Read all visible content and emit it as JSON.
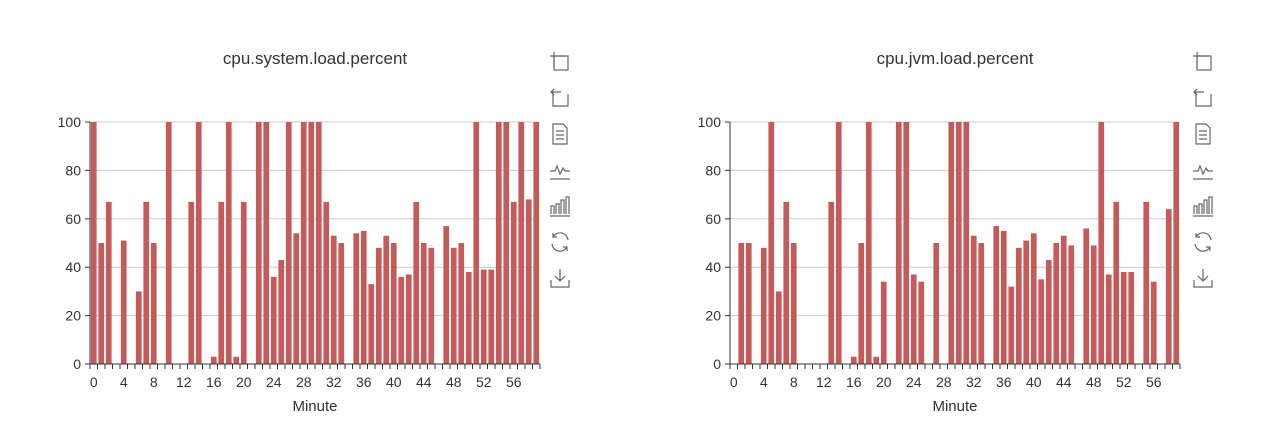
{
  "colors": {
    "bar": "#c45a5a",
    "axis": "#333333",
    "grid": "#cccccc",
    "text": "#333333",
    "icon": "#666666"
  },
  "toolbox": {
    "tools": [
      {
        "name": "zoom-icon",
        "title": "Zoom"
      },
      {
        "name": "zoom-reset-icon",
        "title": "Back"
      },
      {
        "name": "data-view-icon",
        "title": "Data View"
      },
      {
        "name": "line-chart-icon",
        "title": "Line"
      },
      {
        "name": "bar-chart-icon",
        "title": "Bar"
      },
      {
        "name": "restore-icon",
        "title": "Restore"
      },
      {
        "name": "save-image-icon",
        "title": "Save"
      }
    ]
  },
  "chart_data": [
    {
      "type": "bar",
      "title": "cpu.system.load.percent",
      "xlabel": "Minute",
      "ylabel": "",
      "ylim": [
        0,
        100
      ],
      "yticks": [
        0,
        20,
        40,
        60,
        80,
        100
      ],
      "xticks": [
        0,
        4,
        8,
        12,
        16,
        20,
        24,
        28,
        32,
        36,
        40,
        44,
        48,
        52,
        56
      ],
      "grid": true,
      "x": [
        0,
        1,
        2,
        3,
        4,
        5,
        6,
        7,
        8,
        9,
        10,
        11,
        12,
        13,
        14,
        15,
        16,
        17,
        18,
        19,
        20,
        21,
        22,
        23,
        24,
        25,
        26,
        27,
        28,
        29,
        30,
        31,
        32,
        33,
        34,
        35,
        36,
        37,
        38,
        39,
        40,
        41,
        42,
        43,
        44,
        45,
        46,
        47,
        48,
        49,
        50,
        51,
        52,
        53,
        54,
        55,
        56,
        57,
        58,
        59
      ],
      "values": [
        100,
        50,
        67,
        0,
        51,
        0,
        30,
        67,
        50,
        0,
        100,
        0,
        0,
        67,
        100,
        0,
        3,
        67,
        100,
        3,
        67,
        0,
        100,
        100,
        36,
        43,
        100,
        54,
        100,
        100,
        100,
        67,
        53,
        50,
        0,
        54,
        55,
        33,
        48,
        53,
        50,
        36,
        37,
        67,
        50,
        48,
        0,
        57,
        48,
        50,
        38,
        100,
        39,
        39,
        100,
        100,
        67,
        100,
        68,
        100
      ]
    },
    {
      "type": "bar",
      "title": "cpu.jvm.load.percent",
      "xlabel": "Minute",
      "ylabel": "",
      "ylim": [
        0,
        100
      ],
      "yticks": [
        0,
        20,
        40,
        60,
        80,
        100
      ],
      "xticks": [
        0,
        4,
        8,
        12,
        16,
        20,
        24,
        28,
        32,
        36,
        40,
        44,
        48,
        52,
        56
      ],
      "grid": true,
      "x": [
        0,
        1,
        2,
        3,
        4,
        5,
        6,
        7,
        8,
        9,
        10,
        11,
        12,
        13,
        14,
        15,
        16,
        17,
        18,
        19,
        20,
        21,
        22,
        23,
        24,
        25,
        26,
        27,
        28,
        29,
        30,
        31,
        32,
        33,
        34,
        35,
        36,
        37,
        38,
        39,
        40,
        41,
        42,
        43,
        44,
        45,
        46,
        47,
        48,
        49,
        50,
        51,
        52,
        53,
        54,
        55,
        56,
        57,
        58,
        59
      ],
      "values": [
        0,
        50,
        50,
        0,
        48,
        100,
        30,
        67,
        50,
        0,
        0,
        0,
        0,
        67,
        100,
        0,
        3,
        50,
        100,
        3,
        34,
        0,
        100,
        100,
        37,
        34,
        0,
        50,
        0,
        100,
        100,
        100,
        53,
        50,
        0,
        57,
        55,
        32,
        48,
        51,
        54,
        35,
        43,
        50,
        53,
        49,
        0,
        56,
        49,
        100,
        37,
        67,
        38,
        38,
        0,
        67,
        34,
        0,
        64,
        100
      ]
    }
  ]
}
